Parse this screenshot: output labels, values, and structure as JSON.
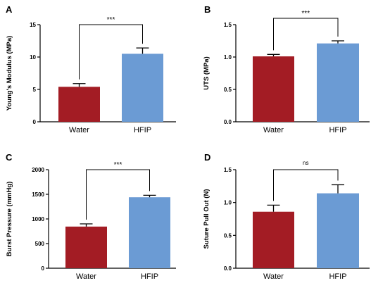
{
  "colors": {
    "water": "#a31c24",
    "hfip": "#6b9bd4",
    "axis": "#000000"
  },
  "chart_data": [
    {
      "panel": "A",
      "type": "bar",
      "categories": [
        "Water",
        "HFIP"
      ],
      "values": [
        5.4,
        10.5
      ],
      "errors": [
        0.5,
        0.9
      ],
      "ylabel": "Young's Modulus (MPa)",
      "ylim": [
        0,
        15
      ],
      "yticks": [
        "0",
        "5",
        "10",
        "15"
      ],
      "significance": "***"
    },
    {
      "panel": "B",
      "type": "bar",
      "categories": [
        "Water",
        "HFIP"
      ],
      "values": [
        1.01,
        1.21
      ],
      "errors": [
        0.03,
        0.04
      ],
      "ylabel": "UTS (MPa)",
      "ylim": [
        0,
        1.5
      ],
      "yticks": [
        "0.0",
        "0.5",
        "1.0",
        "1.5"
      ],
      "significance": "***"
    },
    {
      "panel": "C",
      "type": "bar",
      "categories": [
        "Water",
        "HFIP"
      ],
      "values": [
        845,
        1440
      ],
      "errors": [
        55,
        40
      ],
      "ylabel": "Burst Pressure  (mmHg)",
      "ylim": [
        0,
        2000
      ],
      "yticks": [
        "0",
        "500",
        "1000",
        "1500",
        "2000"
      ],
      "significance": "***"
    },
    {
      "panel": "D",
      "type": "bar",
      "categories": [
        "Water",
        "HFIP"
      ],
      "values": [
        0.86,
        1.14
      ],
      "errors": [
        0.1,
        0.13
      ],
      "ylabel": "Suture Pull Out  (N)",
      "ylim": [
        0,
        1.5
      ],
      "yticks": [
        "0.0",
        "0.5",
        "1.0",
        "1.5"
      ],
      "significance": "ns"
    }
  ]
}
